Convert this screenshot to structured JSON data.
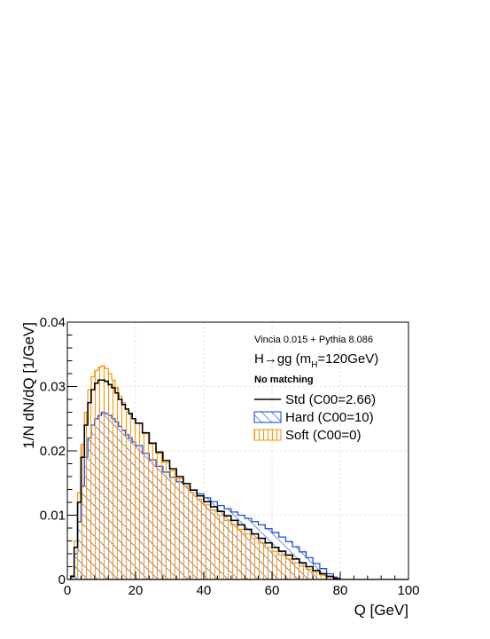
{
  "chart_data": {
    "type": "line",
    "title": "",
    "xlabel": "Q [GeV]",
    "ylabel": "1/N dN/dQ [1/GeV]",
    "xlim": [
      0,
      100
    ],
    "ylim": [
      0,
      0.04
    ],
    "grid": true,
    "x_ticks": [
      0,
      20,
      40,
      60,
      80,
      100
    ],
    "x_tick_labels": [
      "0",
      "20",
      "40",
      "60",
      "80",
      "100"
    ],
    "y_ticks": [
      0,
      0.01,
      0.02,
      0.03,
      0.04
    ],
    "y_tick_labels": [
      "0",
      "0.01",
      "0.02",
      "0.03",
      "0.04"
    ],
    "annotations": {
      "line1": "Vincia 0.015 + Pythia 8.086",
      "line2_pre": "H→gg (m",
      "line2_sub": "H",
      "line2_post": "=120GeV)",
      "line3": "No matching"
    },
    "legend_position": "top-right",
    "x": [
      0.5,
      1,
      2,
      3,
      4,
      5,
      6,
      7,
      8,
      9,
      10,
      11,
      12,
      13,
      14,
      15,
      16,
      17,
      18,
      19,
      20,
      22,
      24,
      26,
      28,
      30,
      32,
      34,
      36,
      38,
      40,
      42,
      44,
      46,
      48,
      50,
      52,
      54,
      56,
      58,
      60,
      62,
      64,
      66,
      68,
      70,
      72,
      74,
      76,
      78,
      79,
      80,
      81,
      85,
      90,
      95,
      100
    ],
    "series": [
      {
        "name": "Std (C00=2.66)",
        "color": "#000000",
        "fill": "none",
        "values": [
          0,
          0.0005,
          0.005,
          0.012,
          0.019,
          0.024,
          0.0275,
          0.0295,
          0.0305,
          0.031,
          0.031,
          0.0308,
          0.0303,
          0.0298,
          0.029,
          0.028,
          0.0272,
          0.0265,
          0.0258,
          0.025,
          0.0243,
          0.0228,
          0.0212,
          0.0198,
          0.0185,
          0.0172,
          0.016,
          0.0149,
          0.0139,
          0.013,
          0.0121,
          0.0113,
          0.0106,
          0.0099,
          0.0092,
          0.0085,
          0.0078,
          0.0071,
          0.0064,
          0.0057,
          0.005,
          0.0044,
          0.0038,
          0.0032,
          0.0026,
          0.002,
          0.0014,
          0.0009,
          0.0005,
          0.0002,
          0.0001,
          0,
          0,
          0,
          0,
          0,
          0
        ]
      },
      {
        "name": "Hard (C00=10)",
        "color": "#1f4ed8",
        "fill": "diagonal-hatch",
        "values": [
          0,
          0.0004,
          0.004,
          0.009,
          0.0145,
          0.019,
          0.022,
          0.024,
          0.025,
          0.0255,
          0.026,
          0.0258,
          0.0255,
          0.025,
          0.0245,
          0.0238,
          0.0232,
          0.0225,
          0.022,
          0.0214,
          0.0208,
          0.0196,
          0.0186,
          0.0176,
          0.0167,
          0.0159,
          0.0152,
          0.0145,
          0.0139,
          0.0133,
          0.0127,
          0.0121,
          0.0115,
          0.011,
          0.0105,
          0.01,
          0.0095,
          0.009,
          0.0085,
          0.0079,
          0.0073,
          0.0066,
          0.0059,
          0.0051,
          0.0043,
          0.0034,
          0.0025,
          0.0017,
          0.0009,
          0.0004,
          0.0002,
          0,
          0,
          0,
          0,
          0,
          0
        ]
      },
      {
        "name": "Soft (C00=0)",
        "color": "#f39c1f",
        "fill": "vertical-hatch",
        "values": [
          0,
          0.0006,
          0.006,
          0.0135,
          0.021,
          0.026,
          0.0295,
          0.0315,
          0.0325,
          0.033,
          0.0332,
          0.0328,
          0.032,
          0.031,
          0.0298,
          0.0285,
          0.0275,
          0.0265,
          0.0257,
          0.025,
          0.0243,
          0.0227,
          0.0211,
          0.0196,
          0.0182,
          0.0169,
          0.0157,
          0.0145,
          0.0135,
          0.0125,
          0.0116,
          0.0108,
          0.01,
          0.0092,
          0.0085,
          0.0078,
          0.0071,
          0.0064,
          0.0057,
          0.005,
          0.0044,
          0.0038,
          0.0032,
          0.0026,
          0.0021,
          0.0016,
          0.0011,
          0.0007,
          0.0004,
          0.0001,
          5e-05,
          0,
          0,
          0,
          0,
          0,
          0
        ]
      }
    ]
  }
}
